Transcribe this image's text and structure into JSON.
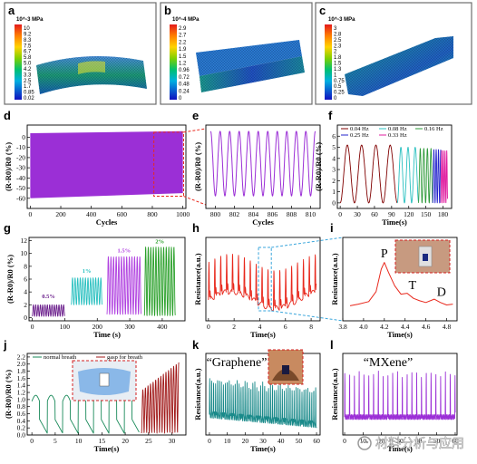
{
  "panel_letters": [
    "a",
    "b",
    "c",
    "d",
    "e",
    "f",
    "g",
    "h",
    "i",
    "j",
    "k",
    "l"
  ],
  "sims": [
    {
      "letter": "a",
      "title": "10^-3 MPa",
      "ticks": [
        "10",
        "9.2",
        "8.3",
        "7.5",
        "6.7",
        "5.8",
        "5.0",
        "4.2",
        "3.3",
        "2.5",
        "1.7",
        "0.85",
        "0.02"
      ]
    },
    {
      "letter": "b",
      "title": "10^-4 MPa",
      "ticks": [
        "2.9",
        "2.7",
        "2.2",
        "1.9",
        "1.5",
        "1.2",
        "0.96",
        "0.72",
        "0.48",
        "0.24",
        "0"
      ]
    },
    {
      "letter": "c",
      "title": "10^-3 MPa",
      "ticks": [
        "3",
        "2.8",
        "2.5",
        "2.3",
        "2",
        "1.8",
        "1.5",
        "1.3",
        "1",
        "0.75",
        "0.5",
        "0.25",
        "0"
      ]
    }
  ],
  "colors": {
    "purple": "#9b2fd6",
    "red": "#e8281c",
    "teal": "#1a8a78",
    "cyan": "#3aa6dc",
    "dark_red": "#a01818",
    "axis": "#000000"
  },
  "chart_data": [
    {
      "panel": "d",
      "type": "area",
      "xlabel": "Cycles",
      "ylabel": "(R-R0)/R0 (%)",
      "xlim": [
        -20,
        1020
      ],
      "ylim": [
        -70,
        12
      ],
      "xticks": [
        "0",
        "200",
        "400",
        "600",
        "800",
        "1000"
      ],
      "yticks": [
        "0",
        "-10",
        "-20",
        "-30",
        "-40",
        "-50",
        "-60"
      ],
      "series": [
        {
          "color": "#9b2fd6",
          "upper": [
            [
              0,
              4
            ],
            [
              1000,
              6
            ]
          ],
          "lower": [
            [
              0,
              -60
            ],
            [
              1000,
              -55
            ]
          ]
        }
      ]
    },
    {
      "panel": "e",
      "type": "line",
      "xlabel": "Cycles",
      "ylabel": "(R-R0)/R0 (%)",
      "xlim": [
        799,
        811
      ],
      "ylim": [
        -70,
        10
      ],
      "xticks": [
        "800",
        "802",
        "804",
        "806",
        "808",
        "810"
      ],
      "yticks": [],
      "series": [
        {
          "color": "#9b2fd6",
          "period": 1,
          "start": 799.5,
          "end": 810.5,
          "max": 4,
          "min": -58
        }
      ]
    },
    {
      "panel": "f",
      "type": "line",
      "xlabel": "Time(s)",
      "ylabel": "(R-R0)/R0 (%)",
      "xlim": [
        -5,
        195
      ],
      "ylim": [
        -0.5,
        7
      ],
      "xticks": [
        "0",
        "30",
        "60",
        "90",
        "120",
        "150",
        "180"
      ],
      "yticks": [
        "0",
        "1",
        "2",
        "3",
        "4",
        "5",
        "6"
      ],
      "legend": [
        "0.04 Hz",
        "0.08 Hz",
        "0.16 Hz",
        "0.25 Hz",
        "0.33 Hz"
      ],
      "series": [
        {
          "name": "0.04 Hz",
          "color": "#800000",
          "t0": 0,
          "t1": 100,
          "freq": 0.04,
          "max": 5.2
        },
        {
          "name": "0.08 Hz",
          "color": "#29c0c0",
          "t0": 100,
          "t1": 137,
          "freq": 0.08,
          "max": 5.0
        },
        {
          "name": "0.16 Hz",
          "color": "#2e9a3a",
          "t0": 137,
          "t1": 162,
          "freq": 0.16,
          "max": 4.9
        },
        {
          "name": "0.25 Hz",
          "color": "#2424cc",
          "t0": 162,
          "t1": 176,
          "freq": 0.25,
          "max": 4.8
        },
        {
          "name": "0.33 Hz",
          "color": "#e020a0",
          "t0": 176,
          "t1": 188,
          "freq": 0.33,
          "max": 4.7
        }
      ]
    },
    {
      "panel": "g",
      "type": "line",
      "xlabel": "Time (s)",
      "ylabel": "(R-R0)/R0 (%)",
      "xlim": [
        -10,
        470
      ],
      "ylim": [
        -0.5,
        12.5
      ],
      "xticks": [
        "0",
        "100",
        "200",
        "300",
        "400"
      ],
      "yticks": [
        "0",
        "2",
        "4",
        "6",
        "8",
        "10",
        "12"
      ],
      "annotations": [
        "0.5%",
        "1%",
        "1.5%",
        "2%"
      ],
      "series": [
        {
          "name": "0.5%",
          "color": "#6b1f8c",
          "t0": 0,
          "t1": 100,
          "lo": 0.2,
          "hi": 2.0,
          "cycles": 14
        },
        {
          "name": "1%",
          "color": "#29c0c0",
          "t0": 120,
          "t1": 215,
          "lo": 2.0,
          "hi": 6.2,
          "cycles": 12
        },
        {
          "name": "1.5%",
          "color": "#b040e0",
          "t0": 230,
          "t1": 335,
          "lo": 0.5,
          "hi": 9.5,
          "cycles": 13
        },
        {
          "name": "2%",
          "color": "#2aa02a",
          "t0": 345,
          "t1": 440,
          "lo": 0.3,
          "hi": 11.0,
          "cycles": 12
        }
      ]
    },
    {
      "panel": "h",
      "type": "line",
      "xlabel": "Time(s)",
      "ylabel": "Resistance(a.u.)",
      "xlim": [
        -0.2,
        8.7
      ],
      "ylim": [
        0,
        1
      ],
      "xticks": [
        "0",
        "2",
        "4",
        "6",
        "8"
      ],
      "yticks": [],
      "series": [
        {
          "color": "#e8281c",
          "period": 0.46,
          "t0": 0,
          "t1": 8.4
        }
      ]
    },
    {
      "panel": "i",
      "type": "line",
      "xlabel": "Time(s)",
      "ylabel": "Resistance(a.u.)",
      "xlim": [
        3.8,
        4.9
      ],
      "ylim": [
        0,
        1
      ],
      "xticks": [
        "3.8",
        "4.0",
        "4.2",
        "4.4",
        "4.6",
        "4.8"
      ],
      "yticks": [],
      "peaks": [
        "P",
        "T",
        "D"
      ],
      "series": [
        {
          "color": "#e8281c",
          "points": [
            [
              3.87,
              0.18
            ],
            [
              3.95,
              0.2
            ],
            [
              4.05,
              0.23
            ],
            [
              4.12,
              0.35
            ],
            [
              4.17,
              0.62
            ],
            [
              4.2,
              0.7
            ],
            [
              4.24,
              0.58
            ],
            [
              4.3,
              0.42
            ],
            [
              4.36,
              0.32
            ],
            [
              4.42,
              0.33
            ],
            [
              4.48,
              0.27
            ],
            [
              4.54,
              0.24
            ],
            [
              4.6,
              0.22
            ],
            [
              4.68,
              0.26
            ],
            [
              4.74,
              0.22
            ],
            [
              4.8,
              0.19
            ],
            [
              4.86,
              0.2
            ]
          ]
        }
      ]
    },
    {
      "panel": "j",
      "type": "line",
      "xlabel": "Time(s)",
      "ylabel": "(R-R0)/R0 (%)",
      "xlim": [
        -1,
        33
      ],
      "ylim": [
        0,
        2.3
      ],
      "xticks": [
        "0",
        "5",
        "10",
        "15",
        "20",
        "25",
        "30"
      ],
      "yticks": [
        "0.0",
        "0.2",
        "0.4",
        "0.6",
        "0.8",
        "1.0",
        "1.2",
        "1.4",
        "1.6",
        "1.8",
        "2.0",
        "2.2"
      ],
      "legend": [
        "normal breath",
        "gasp for breath"
      ],
      "series": [
        {
          "name": "normal breath",
          "color": "#1a8a5a",
          "t0": 0,
          "t1": 23,
          "period": 3.3,
          "max": 1.12
        },
        {
          "name": "gasp for breath",
          "color": "#a01818",
          "t0": 23.5,
          "t1": 31.5,
          "period": 0.55,
          "max": 2.0
        }
      ]
    },
    {
      "panel": "k",
      "type": "line",
      "xlabel": "Time(s)",
      "ylabel": "Resistance(a.u.)",
      "xlim": [
        -2,
        62
      ],
      "ylim": [
        0,
        1
      ],
      "xticks": [
        "0",
        "10",
        "20",
        "30",
        "40",
        "50",
        "60"
      ],
      "yticks": [],
      "label": "“Graphene”",
      "series": [
        {
          "color": "#1a8a8a",
          "t0": 0,
          "t1": 60
        }
      ]
    },
    {
      "panel": "l",
      "type": "line",
      "xlabel": "Time(s)",
      "ylabel": "Resistance(a.u.)",
      "xlim": [
        -1,
        61
      ],
      "ylim": [
        0,
        1
      ],
      "xticks": [
        "0",
        "10",
        "20",
        "30",
        "40",
        "50",
        "60"
      ],
      "yticks": [],
      "label": "“MXene”",
      "series": [
        {
          "color": "#9b2fd6",
          "t0": 0,
          "t1": 60
        }
      ]
    }
  ],
  "watermark": "材料分析与应用"
}
